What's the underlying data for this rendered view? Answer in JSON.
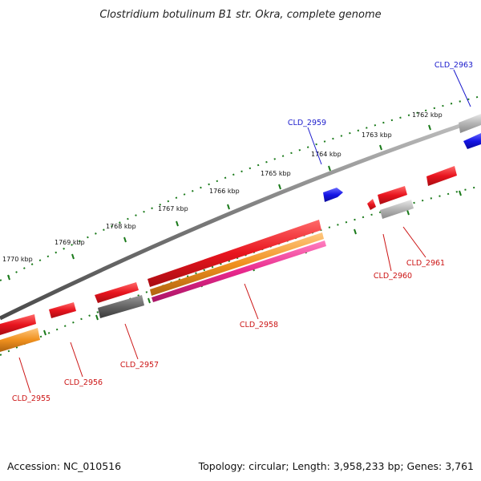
{
  "title": "Clostridium botulinum B1 str. Okra, complete genome",
  "footer": {
    "accession": "Accession: NC_010516",
    "summary": "Topology: circular; Length: 3,958,233 bp; Genes: 3,761"
  },
  "scale_labels": [
    "1762 kbp",
    "1763 kbp",
    "1764 kbp",
    "1765 kbp",
    "1766 kbp",
    "1767 kbp",
    "1768 kbp",
    "1769 kbp",
    "1770 kbp"
  ],
  "gene_labels": {
    "CLD_2963": "CLD_2963",
    "CLD_2959": "CLD_2959",
    "CLD_2961": "CLD_2961",
    "CLD_2960": "CLD_2960",
    "CLD_2958": "CLD_2958",
    "CLD_2957": "CLD_2957",
    "CLD_2956": "CLD_2956",
    "CLD_2955": "CLD_2955"
  },
  "colors": {
    "backbone": "#808080",
    "scale_dots": "#1a7a1a",
    "red_gene": "#e8141e",
    "blue_gene": "#1414e6",
    "orange_gene": "#f0901e",
    "pink_gene": "#e8288c",
    "grey_gene": "#b4b4b4",
    "dark_grey_gene": "#646464",
    "label_red": "#cc1414",
    "label_blue": "#1a1acc"
  }
}
